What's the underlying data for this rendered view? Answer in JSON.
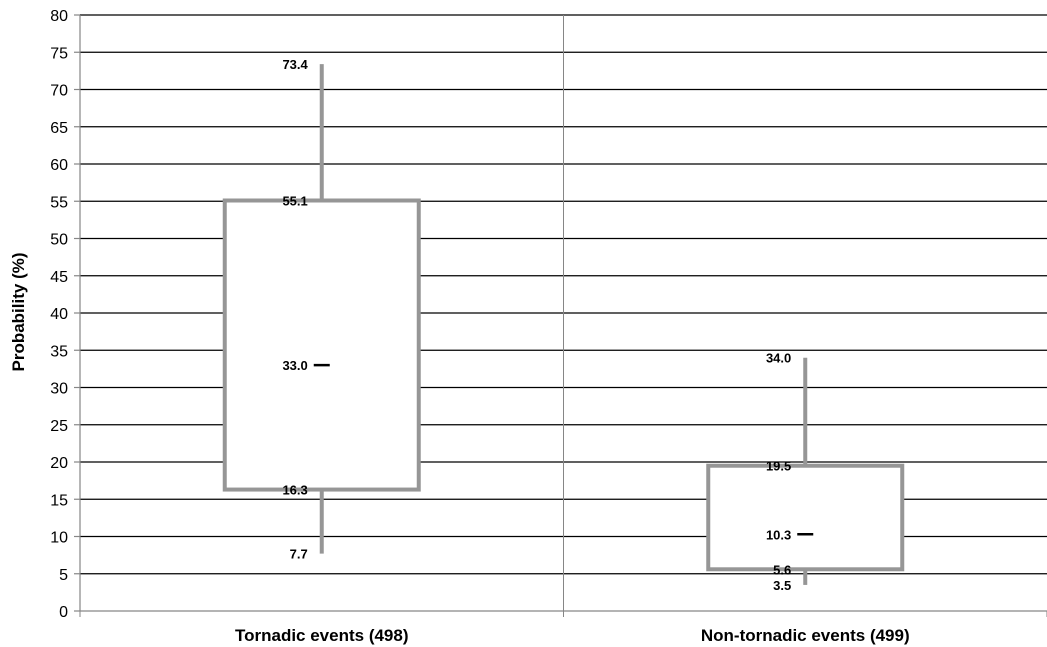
{
  "chart_data": {
    "type": "box",
    "title": "",
    "xlabel": "",
    "ylabel": "Probability (%)",
    "ylim": [
      0,
      80
    ],
    "ytick_step": 5,
    "yticks": [
      "0",
      "5",
      "10",
      "15",
      "20",
      "25",
      "30",
      "35",
      "40",
      "45",
      "50",
      "55",
      "60",
      "65",
      "70",
      "75",
      "80"
    ],
    "grid": "horizontal",
    "categories": [
      "Tornadic events (498)",
      "Non-tornadic events (499)"
    ],
    "boxes": [
      {
        "category": "Tornadic events (498)",
        "min": 7.7,
        "q1": 16.3,
        "median": 33.0,
        "q3": 55.1,
        "max": 73.4,
        "labels": {
          "min": "7.7",
          "q1": "16.3",
          "median": "33.0",
          "q3": "55.1",
          "max": "73.4"
        }
      },
      {
        "category": "Non-tornadic events (499)",
        "min": 3.5,
        "q1": 5.6,
        "median": 10.3,
        "q3": 19.5,
        "max": 34.0,
        "labels": {
          "min": "3.5",
          "q1": "5.6",
          "median": "10.3",
          "q3": "19.5",
          "max": "34.0"
        }
      }
    ],
    "colors": {
      "box_stroke": "#969696",
      "gridline": "#000000",
      "axis": "#868686",
      "median_marker": "#000000",
      "text": "#000000"
    }
  }
}
